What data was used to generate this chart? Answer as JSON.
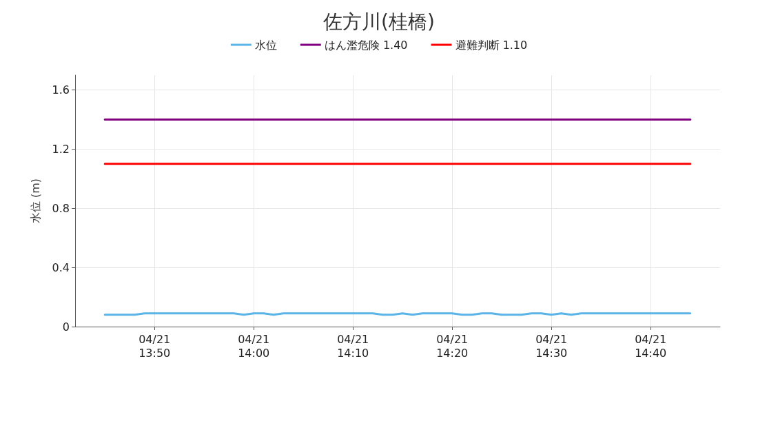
{
  "chart_data": {
    "type": "line",
    "title": "佐方川(桂橋)",
    "ylabel": "水位 (m)",
    "categories": [
      null,
      null,
      null,
      null,
      null,
      null,
      null,
      null,
      "04/21\n13:50",
      null,
      null,
      null,
      null,
      null,
      null,
      null,
      null,
      null,
      "04/21\n14:00",
      null,
      null,
      null,
      null,
      null,
      null,
      null,
      null,
      null,
      "04/21\n14:10",
      null,
      null,
      null,
      null,
      null,
      null,
      null,
      null,
      null,
      "04/21\n14:20",
      null,
      null,
      null,
      null,
      null,
      null,
      null,
      null,
      null,
      "04/21\n14:30",
      null,
      null,
      null,
      null,
      null,
      null,
      null,
      null,
      null,
      "04/21\n14:40",
      null,
      null,
      null,
      null,
      null,
      null,
      null
    ],
    "ylim": [
      0,
      1.7
    ],
    "yticks": [
      0,
      0.4,
      0.8,
      1.2,
      1.6
    ],
    "grid": true,
    "legend": "top",
    "marker": "none",
    "line_style": "solid",
    "series": [
      {
        "name": "水位",
        "color": "#5ab4e8",
        "values": [
          null,
          null,
          null,
          0.08,
          0.08,
          0.08,
          0.08,
          0.09,
          0.09,
          0.09,
          0.09,
          0.09,
          0.09,
          0.09,
          0.09,
          0.09,
          0.09,
          0.08,
          0.09,
          0.09,
          0.08,
          0.09,
          0.09,
          0.09,
          0.09,
          0.09,
          0.09,
          0.09,
          0.09,
          0.09,
          0.09,
          0.08,
          0.08,
          0.09,
          0.08,
          0.09,
          0.09,
          0.09,
          0.09,
          0.08,
          0.08,
          0.09,
          0.09,
          0.08,
          0.08,
          0.08,
          0.09,
          0.09,
          0.08,
          0.09,
          0.08,
          0.09,
          0.09,
          0.09,
          0.09,
          0.09,
          0.09,
          0.09,
          0.09,
          0.09,
          0.09,
          0.09,
          0.09,
          null,
          null,
          null
        ]
      },
      {
        "name": "はん濫危険 1.40",
        "color": "#800080",
        "values": [
          null,
          null,
          null,
          1.4,
          1.4,
          1.4,
          1.4,
          1.4,
          1.4,
          1.4,
          1.4,
          1.4,
          1.4,
          1.4,
          1.4,
          1.4,
          1.4,
          1.4,
          1.4,
          1.4,
          1.4,
          1.4,
          1.4,
          1.4,
          1.4,
          1.4,
          1.4,
          1.4,
          1.4,
          1.4,
          1.4,
          1.4,
          1.4,
          1.4,
          1.4,
          1.4,
          1.4,
          1.4,
          1.4,
          1.4,
          1.4,
          1.4,
          1.4,
          1.4,
          1.4,
          1.4,
          1.4,
          1.4,
          1.4,
          1.4,
          1.4,
          1.4,
          1.4,
          1.4,
          1.4,
          1.4,
          1.4,
          1.4,
          1.4,
          1.4,
          1.4,
          1.4,
          1.4,
          null,
          null,
          null
        ]
      },
      {
        "name": "避難判断 1.10",
        "color": "#ff0000",
        "values": [
          null,
          null,
          null,
          1.1,
          1.1,
          1.1,
          1.1,
          1.1,
          1.1,
          1.1,
          1.1,
          1.1,
          1.1,
          1.1,
          1.1,
          1.1,
          1.1,
          1.1,
          1.1,
          1.1,
          1.1,
          1.1,
          1.1,
          1.1,
          1.1,
          1.1,
          1.1,
          1.1,
          1.1,
          1.1,
          1.1,
          1.1,
          1.1,
          1.1,
          1.1,
          1.1,
          1.1,
          1.1,
          1.1,
          1.1,
          1.1,
          1.1,
          1.1,
          1.1,
          1.1,
          1.1,
          1.1,
          1.1,
          1.1,
          1.1,
          1.1,
          1.1,
          1.1,
          1.1,
          1.1,
          1.1,
          1.1,
          1.1,
          1.1,
          1.1,
          1.1,
          1.1,
          1.1,
          null,
          null,
          null
        ]
      }
    ]
  }
}
